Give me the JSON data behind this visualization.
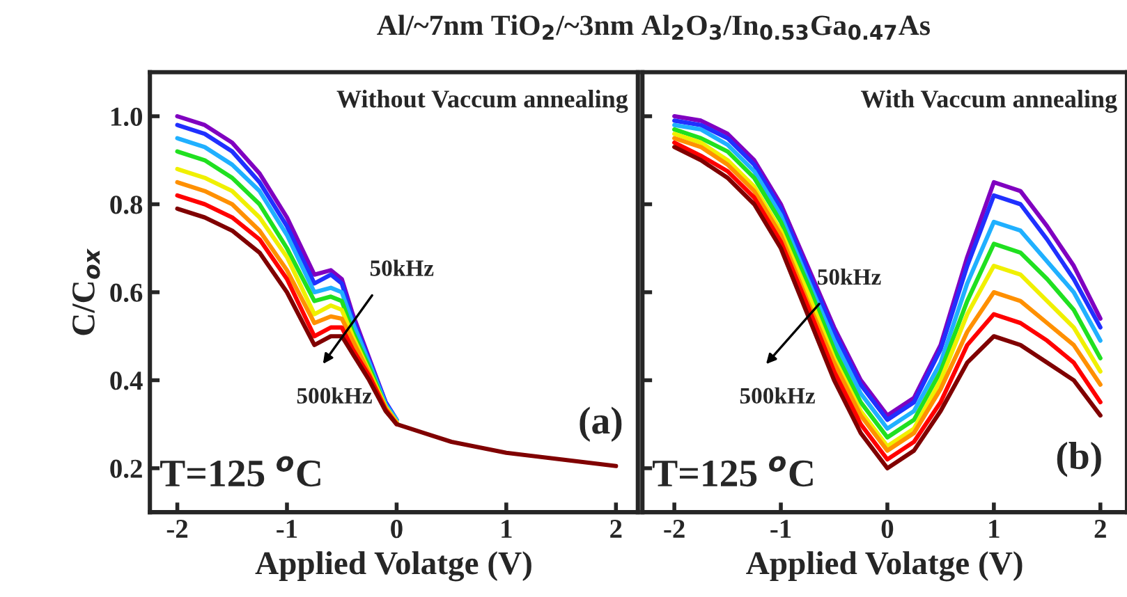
{
  "chart_data": [
    {
      "type": "line",
      "title": "Al/~7nm TiO$_{2}$/~3nm Al$_{2}$O$_{3}$/In$_{0.53}$Ga$_{0.47}$As",
      "subtitle": "Without Vaccum annealing",
      "xlabel": "Applied Volatge (V)",
      "ylabel": "C/C$_{ox}$",
      "annotations": [
        "50kHz",
        "500kHz",
        "(a)",
        "T=125 $^{o}$C"
      ],
      "x": [
        -2,
        -1.75,
        -1.5,
        -1.25,
        -1,
        -0.75,
        -0.6,
        -0.5,
        -0.4,
        -0.25,
        -0.1,
        0,
        0.25,
        0.5,
        1,
        1.5,
        2
      ],
      "series": [
        {
          "color": "#8000c0",
          "values": [
            1.0,
            0.98,
            0.94,
            0.87,
            0.77,
            0.64,
            0.65,
            0.63,
            0.55,
            0.45,
            0.35,
            0.31,
            null,
            null,
            null,
            null,
            null
          ]
        },
        {
          "color": "#2030ff",
          "values": [
            0.98,
            0.96,
            0.92,
            0.85,
            0.75,
            0.62,
            0.64,
            0.62,
            0.54,
            0.445,
            0.35,
            0.31,
            null,
            null,
            null,
            null,
            null
          ]
        },
        {
          "color": "#20b0ff",
          "values": [
            0.95,
            0.93,
            0.89,
            0.83,
            0.73,
            0.6,
            0.61,
            0.6,
            0.53,
            0.44,
            0.345,
            0.31,
            null,
            null,
            null,
            null,
            null
          ]
        },
        {
          "color": "#20e020",
          "values": [
            0.92,
            0.9,
            0.86,
            0.8,
            0.7,
            0.58,
            0.59,
            0.58,
            0.51,
            0.43,
            0.34,
            0.305,
            null,
            null,
            null,
            null,
            null
          ]
        },
        {
          "color": "#f0f000",
          "values": [
            0.88,
            0.86,
            0.83,
            0.77,
            0.68,
            0.55,
            0.57,
            0.56,
            0.5,
            0.42,
            0.34,
            0.305,
            null,
            null,
            null,
            null,
            null
          ]
        },
        {
          "color": "#ff9000",
          "values": [
            0.85,
            0.83,
            0.8,
            0.74,
            0.65,
            0.53,
            0.545,
            0.54,
            0.49,
            0.415,
            0.336,
            0.303,
            null,
            null,
            null,
            null,
            null
          ]
        },
        {
          "color": "#ff0000",
          "values": [
            0.82,
            0.8,
            0.77,
            0.72,
            0.63,
            0.5,
            0.52,
            0.52,
            0.47,
            0.41,
            0.333,
            0.3,
            null,
            null,
            null,
            null,
            null
          ]
        },
        {
          "color": "#800000",
          "values": [
            0.79,
            0.77,
            0.74,
            0.69,
            0.6,
            0.48,
            0.5,
            0.5,
            0.46,
            0.4,
            0.33,
            0.3,
            0.28,
            0.26,
            0.235,
            0.22,
            0.205
          ]
        }
      ],
      "xlim": [
        -2.25,
        2.2
      ],
      "ylim": [
        0.1,
        1.1
      ],
      "xticks": [
        -2,
        -1,
        0,
        1,
        2
      ],
      "yticks": [
        0.2,
        0.4,
        0.6,
        0.8,
        {
          "value": 1,
          "label": "1.0"
        }
      ],
      "grid": false,
      "legend": false,
      "marker": "none",
      "line_style": "solid"
    },
    {
      "type": "line",
      "subtitle": "With Vaccum annealing",
      "xlabel": "Applied Volatge (V)",
      "annotations": [
        "50kHz",
        "500kHz",
        "(b)",
        "T=125 $^{o}$C"
      ],
      "x": [
        -2,
        -1.75,
        -1.5,
        -1.25,
        -1,
        -0.75,
        -0.5,
        -0.25,
        0,
        0.25,
        0.5,
        0.75,
        1,
        1.25,
        1.5,
        1.75,
        2
      ],
      "series": [
        {
          "color": "#8000c0",
          "values": [
            1.0,
            0.99,
            0.96,
            0.9,
            0.8,
            0.66,
            0.52,
            0.4,
            0.32,
            0.36,
            0.48,
            0.68,
            0.85,
            0.83,
            0.75,
            0.66,
            0.54
          ]
        },
        {
          "color": "#2030ff",
          "values": [
            0.99,
            0.98,
            0.95,
            0.89,
            0.79,
            0.65,
            0.51,
            0.39,
            0.31,
            0.35,
            0.47,
            0.66,
            0.82,
            0.8,
            0.72,
            0.63,
            0.52
          ]
        },
        {
          "color": "#20b0ff",
          "values": [
            0.98,
            0.97,
            0.935,
            0.875,
            0.775,
            0.63,
            0.49,
            0.37,
            0.29,
            0.33,
            0.44,
            0.62,
            0.76,
            0.74,
            0.67,
            0.6,
            0.49
          ]
        },
        {
          "color": "#20e020",
          "values": [
            0.97,
            0.95,
            0.92,
            0.86,
            0.76,
            0.62,
            0.47,
            0.35,
            0.27,
            0.31,
            0.42,
            0.58,
            0.71,
            0.69,
            0.63,
            0.56,
            0.45
          ]
        },
        {
          "color": "#f0f000",
          "values": [
            0.96,
            0.94,
            0.9,
            0.84,
            0.74,
            0.6,
            0.45,
            0.33,
            0.25,
            0.29,
            0.4,
            0.55,
            0.66,
            0.64,
            0.58,
            0.52,
            0.42
          ]
        },
        {
          "color": "#ff9000",
          "values": [
            0.95,
            0.93,
            0.89,
            0.83,
            0.73,
            0.58,
            0.44,
            0.32,
            0.24,
            0.28,
            0.38,
            0.51,
            0.6,
            0.58,
            0.53,
            0.48,
            0.39
          ]
        },
        {
          "color": "#ff0000",
          "values": [
            0.94,
            0.91,
            0.875,
            0.815,
            0.715,
            0.57,
            0.42,
            0.3,
            0.22,
            0.26,
            0.35,
            0.48,
            0.55,
            0.53,
            0.49,
            0.44,
            0.35
          ]
        },
        {
          "color": "#800000",
          "values": [
            0.93,
            0.9,
            0.86,
            0.8,
            0.7,
            0.55,
            0.4,
            0.28,
            0.2,
            0.24,
            0.33,
            0.44,
            0.5,
            0.48,
            0.44,
            0.4,
            0.32
          ]
        }
      ],
      "xlim": [
        -2.3,
        2.25
      ],
      "ylim": [
        0.1,
        1.1
      ],
      "xticks": [
        -2,
        -1,
        0,
        1,
        2
      ],
      "yticks": [
        0.2,
        0.4,
        0.6,
        0.8,
        1.0
      ],
      "tick_labels": "x",
      "grid": false,
      "legend": false,
      "marker": "none",
      "line_style": "solid"
    }
  ]
}
